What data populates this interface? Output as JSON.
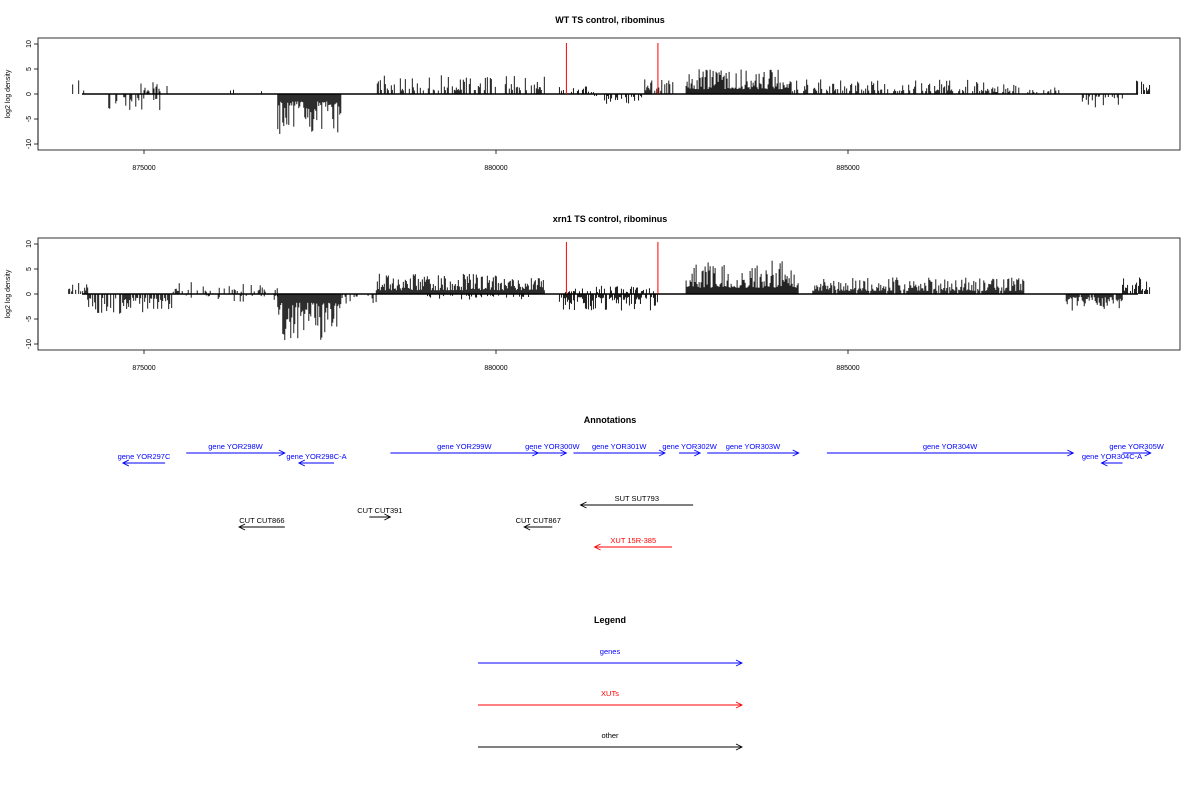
{
  "colors": {
    "gene": "#0000ff",
    "xut": "#ff0000",
    "other": "#000000",
    "marker": "#ff0000"
  },
  "chart_data": [
    {
      "type": "bar",
      "title": "WT TS control, ribominus",
      "ylabel": "log2 log density",
      "xlim": [
        873500,
        889300
      ],
      "ylim": [
        -11,
        11
      ],
      "xticks": [
        875000,
        880000,
        885000
      ],
      "xtick_labels": [
        "875000",
        "880000",
        "885000"
      ],
      "yticks": [
        10,
        5,
        0,
        -5,
        -10
      ],
      "ytick_labels": [
        "10",
        "5",
        "0",
        "-5",
        "-10"
      ],
      "markers_x": [
        881000,
        882300
      ],
      "segments": [
        {
          "from": 873930,
          "to": 874150,
          "sign": 1,
          "amp": 2.2,
          "density": 0.25
        },
        {
          "from": 874400,
          "to": 875300,
          "sign": -1,
          "amp": 2.5,
          "density": 0.35
        },
        {
          "from": 874900,
          "to": 875350,
          "sign": 1,
          "amp": 2.0,
          "density": 0.25
        },
        {
          "from": 876200,
          "to": 876800,
          "sign": 1,
          "amp": 1.5,
          "density": 0.12
        },
        {
          "from": 876900,
          "to": 877800,
          "sign": -1,
          "amp": 6.0,
          "density": 1.0
        },
        {
          "from": 878300,
          "to": 880700,
          "sign": 1,
          "amp": 2.8,
          "density": 0.55
        },
        {
          "from": 880900,
          "to": 881400,
          "sign": 1,
          "amp": 1.5,
          "density": 0.35
        },
        {
          "from": 881400,
          "to": 882100,
          "sign": -1,
          "amp": 1.5,
          "density": 0.35
        },
        {
          "from": 882100,
          "to": 882600,
          "sign": 1,
          "amp": 2.5,
          "density": 0.4
        },
        {
          "from": 882700,
          "to": 884200,
          "sign": 1,
          "amp": 3.8,
          "density": 1.0
        },
        {
          "from": 884200,
          "to": 887000,
          "sign": 1,
          "amp": 2.2,
          "density": 0.5
        },
        {
          "from": 887000,
          "to": 888000,
          "sign": 1,
          "amp": 1.5,
          "density": 0.35
        },
        {
          "from": 888300,
          "to": 888900,
          "sign": -1,
          "amp": 2.0,
          "density": 0.5
        },
        {
          "from": 889100,
          "to": 889300,
          "sign": 1,
          "amp": 2.5,
          "density": 0.5
        }
      ]
    },
    {
      "type": "bar",
      "title": "xrn1 TS control, ribominus",
      "ylabel": "log2 log density",
      "xlim": [
        873500,
        889300
      ],
      "ylim": [
        -11,
        11
      ],
      "xticks": [
        875000,
        880000,
        885000
      ],
      "xtick_labels": [
        "875000",
        "880000",
        "885000"
      ],
      "yticks": [
        10,
        5,
        0,
        -5,
        -10
      ],
      "ytick_labels": [
        "10",
        "5",
        "0",
        "-5",
        "-10"
      ],
      "markers_x": [
        881000,
        882300
      ],
      "segments": [
        {
          "from": 873930,
          "to": 874200,
          "sign": 1,
          "amp": 2.0,
          "density": 0.5
        },
        {
          "from": 874200,
          "to": 875400,
          "sign": -1,
          "amp": 3.0,
          "density": 0.7
        },
        {
          "from": 875400,
          "to": 876900,
          "sign": 1,
          "amp": 1.8,
          "density": 0.3
        },
        {
          "from": 875600,
          "to": 876900,
          "sign": -1,
          "amp": 1.2,
          "density": 0.2
        },
        {
          "from": 876900,
          "to": 877800,
          "sign": -1,
          "amp": 7.0,
          "density": 1.0
        },
        {
          "from": 877800,
          "to": 878300,
          "sign": -1,
          "amp": 1.5,
          "density": 0.3
        },
        {
          "from": 878300,
          "to": 880700,
          "sign": 1,
          "amp": 3.0,
          "density": 1.0
        },
        {
          "from": 879000,
          "to": 880500,
          "sign": -1,
          "amp": 1.2,
          "density": 0.3
        },
        {
          "from": 880900,
          "to": 882300,
          "sign": -1,
          "amp": 2.5,
          "density": 0.8
        },
        {
          "from": 880900,
          "to": 882300,
          "sign": 1,
          "amp": 1.5,
          "density": 0.4
        },
        {
          "from": 882700,
          "to": 884300,
          "sign": 1,
          "amp": 5.0,
          "density": 1.0
        },
        {
          "from": 884500,
          "to": 887500,
          "sign": 1,
          "amp": 2.5,
          "density": 0.9
        },
        {
          "from": 888100,
          "to": 888900,
          "sign": -1,
          "amp": 2.5,
          "density": 0.9
        },
        {
          "from": 888900,
          "to": 889300,
          "sign": 1,
          "amp": 2.5,
          "density": 0.7
        }
      ]
    }
  ],
  "annotations": {
    "title": "Annotations",
    "features": [
      {
        "label": "gene YOR297C",
        "kind": "gene",
        "x_start": 875300,
        "x_end": 874700,
        "row": 2
      },
      {
        "label": "gene YOR298W",
        "kind": "gene",
        "x_start": 875600,
        "x_end": 877000,
        "row": 1
      },
      {
        "label": "gene YOR298C-A",
        "kind": "gene",
        "x_start": 877700,
        "x_end": 877200,
        "row": 2
      },
      {
        "label": "gene YOR299W",
        "kind": "gene",
        "x_start": 878500,
        "x_end": 880600,
        "row": 1
      },
      {
        "label": "gene YOR300W",
        "kind": "gene",
        "x_start": 880600,
        "x_end": 881000,
        "row": 1
      },
      {
        "label": "gene YOR301W",
        "kind": "gene",
        "x_start": 881100,
        "x_end": 882400,
        "row": 1
      },
      {
        "label": "gene YOR302W",
        "kind": "gene",
        "x_start": 882600,
        "x_end": 882900,
        "row": 1
      },
      {
        "label": "gene YOR303W",
        "kind": "gene",
        "x_start": 883000,
        "x_end": 884300,
        "row": 1
      },
      {
        "label": "gene YOR304W",
        "kind": "gene",
        "x_start": 884700,
        "x_end": 888200,
        "row": 1
      },
      {
        "label": "gene YOR304C-A",
        "kind": "gene",
        "x_start": 888900,
        "x_end": 888600,
        "row": 2
      },
      {
        "label": "gene YOR305W",
        "kind": "gene",
        "x_start": 888900,
        "x_end": 889300,
        "row": 1
      },
      {
        "label": "SUT SUT793",
        "kind": "other",
        "x_start": 882800,
        "x_end": 881200,
        "row": 3
      },
      {
        "label": "CUT CUT391",
        "kind": "other",
        "x_start": 878200,
        "x_end": 878500,
        "row": 4
      },
      {
        "label": "CUT CUT866",
        "kind": "other",
        "x_start": 877000,
        "x_end": 876350,
        "row": 5
      },
      {
        "label": "CUT CUT867",
        "kind": "other",
        "x_start": 880800,
        "x_end": 880400,
        "row": 5
      },
      {
        "label": "XUT 15R-385",
        "kind": "xut",
        "x_start": 882500,
        "x_end": 881400,
        "row": 6
      }
    ]
  },
  "legend": {
    "title": "Legend",
    "entries": [
      {
        "label": "genes",
        "kind": "gene"
      },
      {
        "label": "XUTs",
        "kind": "xut"
      },
      {
        "label": "other",
        "kind": "other"
      }
    ]
  }
}
